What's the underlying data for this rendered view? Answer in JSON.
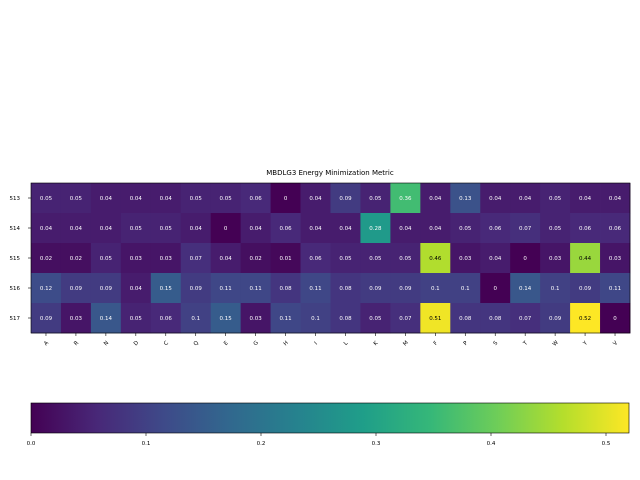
{
  "chart_data": {
    "type": "heatmap",
    "title": "MBDLG3 Energy Minimization Metric",
    "xlabel": "",
    "ylabel": "",
    "rows": [
      "513",
      "514",
      "515",
      "516",
      "517"
    ],
    "columns": [
      "A",
      "R",
      "N",
      "D",
      "C",
      "Q",
      "E",
      "G",
      "H",
      "I",
      "L",
      "K",
      "M",
      "F",
      "P",
      "S",
      "T",
      "W",
      "Y",
      "V"
    ],
    "values": [
      [
        0.05,
        0.05,
        0.04,
        0.04,
        0.04,
        0.05,
        0.05,
        0.06,
        0.0,
        0.04,
        0.09,
        0.05,
        0.36,
        0.04,
        0.13,
        0.04,
        0.04,
        0.05,
        0.04,
        0.04
      ],
      [
        0.04,
        0.04,
        0.04,
        0.05,
        0.05,
        0.04,
        0.0,
        0.04,
        0.06,
        0.04,
        0.04,
        0.28,
        0.04,
        0.04,
        0.05,
        0.06,
        0.07,
        0.05,
        0.06,
        0.06
      ],
      [
        0.02,
        0.02,
        0.05,
        0.03,
        0.03,
        0.07,
        0.04,
        0.02,
        0.01,
        0.06,
        0.05,
        0.05,
        0.05,
        0.46,
        0.03,
        0.04,
        0.0,
        0.03,
        0.44,
        0.03
      ],
      [
        0.12,
        0.09,
        0.09,
        0.04,
        0.15,
        0.09,
        0.11,
        0.11,
        0.08,
        0.11,
        0.08,
        0.09,
        0.09,
        0.1,
        0.1,
        0.0,
        0.14,
        0.1,
        0.09,
        0.11
      ],
      [
        0.09,
        0.03,
        0.14,
        0.05,
        0.06,
        0.1,
        0.15,
        0.03,
        0.11,
        0.1,
        0.08,
        0.05,
        0.07,
        0.51,
        0.08,
        0.08,
        0.07,
        0.09,
        0.52,
        0.0
      ]
    ],
    "colorbar": {
      "colormap": "viridis",
      "range": [
        0.0,
        0.52
      ],
      "ticks": [
        "0.0",
        "0.1",
        "0.2",
        "0.3",
        "0.4",
        "0.5"
      ],
      "orientation": "horizontal",
      "placement": "bottom"
    },
    "grid": false,
    "legend": "none"
  }
}
